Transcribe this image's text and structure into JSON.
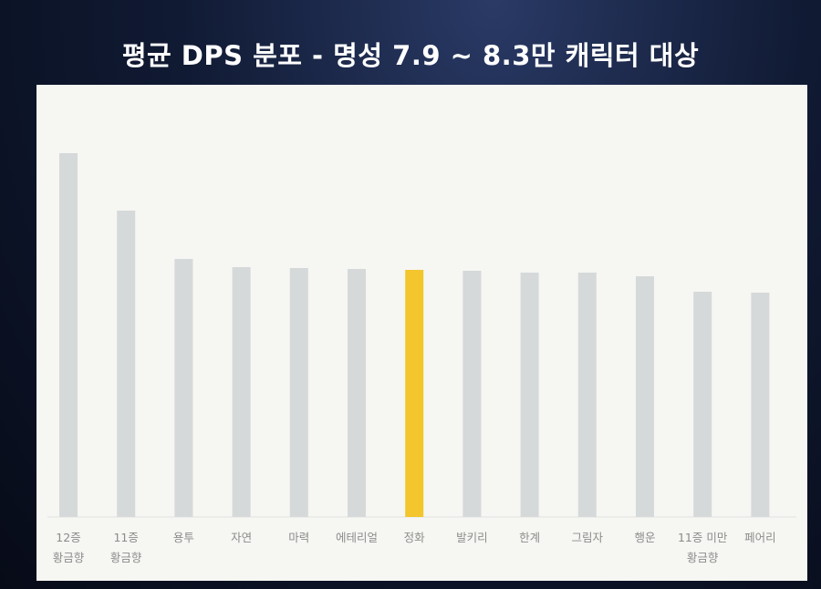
{
  "chart_data": {
    "type": "bar",
    "title": "평균 DPS 분포 - 명성 7.9 ~ 8.3만 캐릭터 대상",
    "categories": [
      "12증\n황금향",
      "11증\n황금향",
      "용투",
      "자연",
      "마력",
      "에테리얼",
      "정화",
      "발키리",
      "한계",
      "그림자",
      "행운",
      "11증 미만\n황금향",
      "페어리"
    ],
    "values": [
      399,
      336,
      283,
      274,
      273,
      272,
      271,
      270,
      268,
      268,
      264,
      247,
      246
    ],
    "colors": [
      "#d5d9d9",
      "#d5d9d9",
      "#d5d9d9",
      "#d5d9d9",
      "#d5d9d9",
      "#d5d9d9",
      "#f2c62c",
      "#d5d9d9",
      "#d5d9d9",
      "#d5d9d9",
      "#d5d9d9",
      "#d5d9d9",
      "#d5d9d9"
    ],
    "ylim": [
      0,
      420
    ]
  }
}
